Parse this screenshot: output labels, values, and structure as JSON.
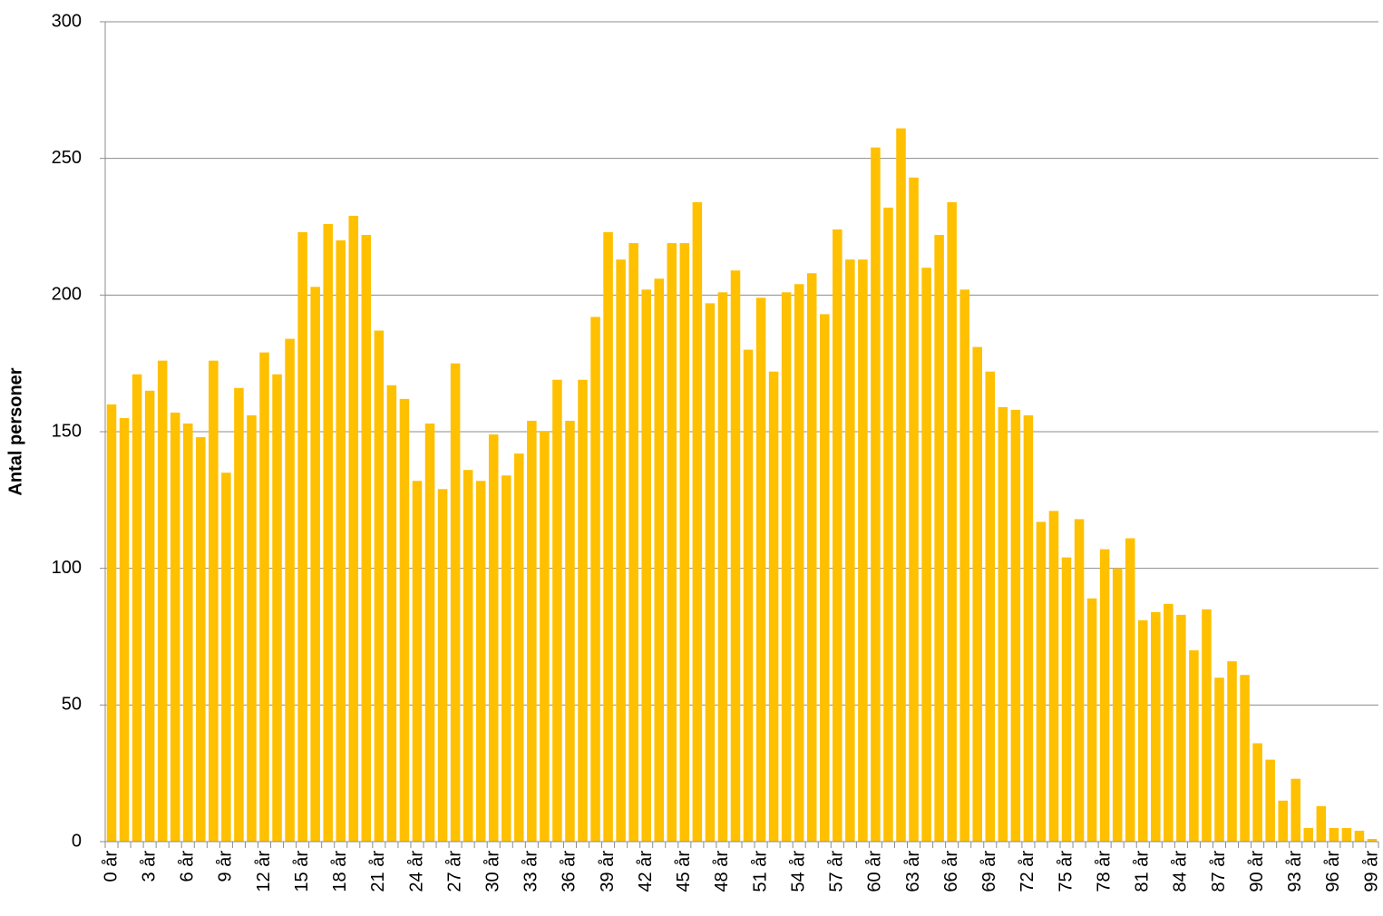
{
  "chart_data": {
    "type": "bar",
    "y_label": "Antal personer",
    "categories": [
      "0 år",
      null,
      null,
      "3 år",
      null,
      null,
      "6 år",
      null,
      null,
      "9 år",
      null,
      null,
      "12 år",
      null,
      null,
      "15 år",
      null,
      null,
      "18 år",
      null,
      null,
      "21 år",
      null,
      null,
      "24 år",
      null,
      null,
      "27 år",
      null,
      null,
      "30 år",
      null,
      null,
      "33 år",
      null,
      null,
      "36 år",
      null,
      null,
      "39 år",
      null,
      null,
      "42 år",
      null,
      null,
      "45 år",
      null,
      null,
      "48 år",
      null,
      null,
      "51 år",
      null,
      null,
      "54 år",
      null,
      null,
      "57 år",
      null,
      null,
      "60 år",
      null,
      null,
      "63 år",
      null,
      null,
      "66 år",
      null,
      null,
      "69 år",
      null,
      null,
      "72 år",
      null,
      null,
      "75 år",
      null,
      null,
      "78 år",
      null,
      null,
      "81 år",
      null,
      null,
      "84 år",
      null,
      null,
      "87 år",
      null,
      null,
      "90 år",
      null,
      null,
      "93 år",
      null,
      null,
      "96 år",
      null,
      null,
      "99 år"
    ],
    "values": [
      160,
      155,
      171,
      165,
      176,
      157,
      153,
      148,
      176,
      135,
      166,
      156,
      179,
      171,
      184,
      223,
      203,
      226,
      220,
      229,
      222,
      187,
      167,
      162,
      132,
      153,
      129,
      175,
      136,
      132,
      149,
      134,
      142,
      154,
      150,
      169,
      154,
      169,
      192,
      223,
      213,
      219,
      202,
      206,
      219,
      219,
      234,
      197,
      201,
      209,
      180,
      199,
      172,
      201,
      204,
      208,
      193,
      224,
      213,
      213,
      254,
      232,
      261,
      243,
      210,
      222,
      234,
      202,
      181,
      172,
      159,
      158,
      156,
      117,
      121,
      104,
      118,
      89,
      107,
      100,
      111,
      81,
      84,
      87,
      83,
      70,
      85,
      60,
      66,
      61,
      36,
      30,
      15,
      23,
      5,
      13,
      5,
      5,
      4,
      1
    ],
    "color": "#FFC000",
    "ylim": [
      0,
      300
    ],
    "yticks": [
      0,
      50,
      100,
      150,
      200,
      250,
      300
    ],
    "grid": true
  }
}
